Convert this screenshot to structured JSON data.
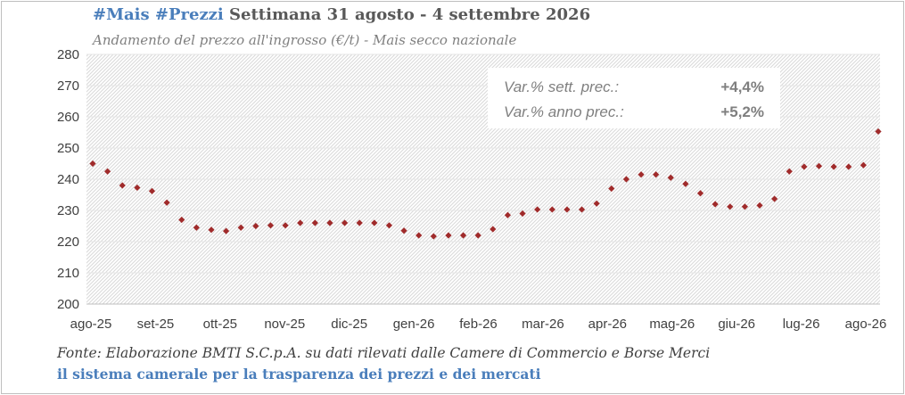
{
  "header": {
    "tags": "#Mais #Prezzi",
    "week": "Settimana 31 agosto - 4 settembre 2026",
    "subtitle": "Andamento del prezzo all'ingrosso (€/t) - Mais secco nazionale"
  },
  "footer": {
    "source": "Fonte: Elaborazione BMTI S.C.p.A. su dati rilevati dalle Camere di Commercio e Borse Merci",
    "slogan": "il sistema camerale per la trasparenza dei prezzi e dei mercati"
  },
  "infobox": {
    "weekly_label": "Var.% sett. prec.:",
    "weekly_value": "+4,4%",
    "yearly_label": "Var.% anno prec.:",
    "yearly_value": "+5,2%"
  },
  "colors": {
    "marker": "#a02b2b",
    "hatch": "#d9d9d9",
    "axis_text": "#404040",
    "accent": "#4a7ebb"
  },
  "chart_data": {
    "type": "scatter",
    "title": "#Mais #Prezzi Settimana 31 agosto - 4 settembre 2026",
    "subtitle": "Andamento del prezzo all'ingrosso (€/t) - Mais secco nazionale",
    "xlabel": "",
    "ylabel": "",
    "ylim": [
      200,
      280
    ],
    "yticks": [
      200,
      210,
      220,
      230,
      240,
      250,
      260,
      270,
      280
    ],
    "xticks": [
      "ago-25",
      "set-25",
      "ott-25",
      "nov-25",
      "dic-25",
      "gen-26",
      "feb-26",
      "mar-26",
      "apr-26",
      "mag-26",
      "giu-26",
      "lug-26",
      "ago-26"
    ],
    "grid": true,
    "series": [
      {
        "values": [
          245,
          242.5,
          238,
          237.3,
          236.2,
          232.5,
          227,
          224.5,
          223.8,
          223.4,
          224.5,
          225,
          225.2,
          225.2,
          226,
          226,
          226,
          226,
          226,
          226,
          225.2,
          223.5,
          222,
          221.7,
          222,
          222,
          222,
          224,
          228.5,
          229,
          230.3,
          230.3,
          230.3,
          230.3,
          232.2,
          237,
          240,
          241.5,
          241.5,
          240.5,
          238.5,
          235.5,
          232,
          231.2,
          231.2,
          231.6,
          233.7,
          242.5,
          244,
          244.2,
          244,
          244,
          244.5,
          255.3
        ]
      }
    ]
  }
}
